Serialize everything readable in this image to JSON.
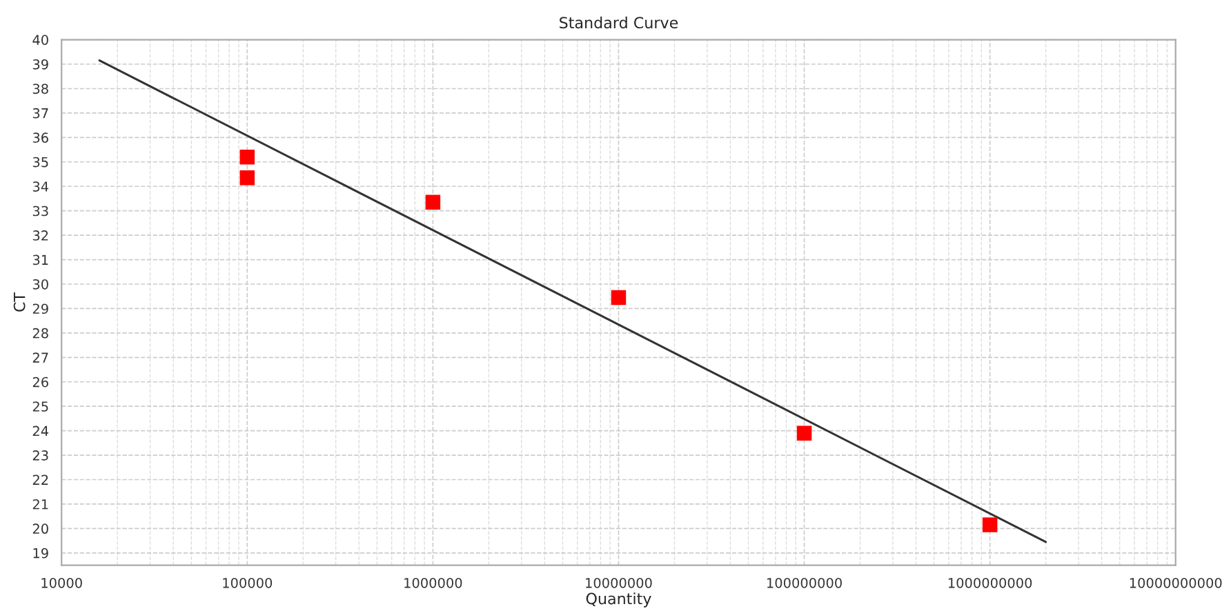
{
  "chart_data": {
    "type": "scatter",
    "title": "Standard Curve",
    "xlabel": "Quantity",
    "ylabel": "CT",
    "log": "x",
    "grid": true,
    "xlim": [
      10000,
      10000000000
    ],
    "xticks": [
      10000,
      100000,
      1000000,
      10000000,
      100000000,
      1000000000,
      10000000000
    ],
    "ylim": [
      18.5,
      40
    ],
    "yticks": [
      19,
      20,
      21,
      22,
      23,
      24,
      25,
      26,
      27,
      28,
      29,
      30,
      31,
      32,
      33,
      34,
      35,
      36,
      37,
      38,
      39,
      40
    ],
    "series": [
      {
        "color": "#ff0000",
        "marker": "square",
        "x": [
          100000,
          100000,
          1000000,
          10000000,
          100000000,
          1000000000
        ],
        "values": [
          35.2,
          34.35,
          33.35,
          29.45,
          23.9,
          20.15
        ]
      },
      {
        "type": "line",
        "color": "#333333",
        "marker": "none",
        "line_style": "solid",
        "x": [
          16000,
          2000000000
        ],
        "values": [
          39.15,
          19.45
        ]
      }
    ]
  }
}
